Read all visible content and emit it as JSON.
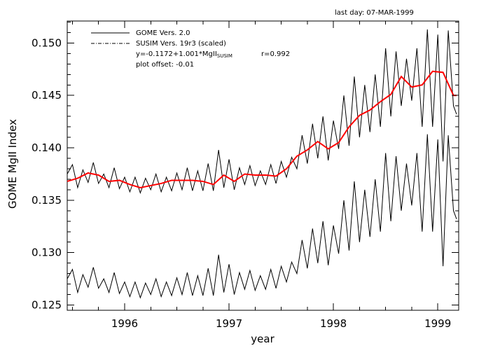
{
  "top_note": "last day: 07-MAR-1999",
  "legend": {
    "gome": "GOME Vers. 2.0",
    "susim": "SUSIM Vers. 19r3 (scaled)",
    "regression_prefix": "y=-0.1172+1.001*MgII",
    "regression_subscript": "SUSIM",
    "correlation": "r=0.992",
    "offset": "plot offset: -0.01"
  },
  "chart_data": {
    "type": "line",
    "title": "",
    "xlabel": "year",
    "ylabel": "GOME MgII Index",
    "xlim": [
      1995.45,
      1999.2
    ],
    "ylim": [
      0.1245,
      0.1521
    ],
    "x_ticks": [
      1996,
      1997,
      1998,
      1999
    ],
    "x_tick_labels": [
      "1996",
      "1997",
      "1998",
      "1999"
    ],
    "y_ticks": [
      0.125,
      0.13,
      0.135,
      0.14,
      0.145,
      0.15
    ],
    "y_tick_labels": [
      "0.125",
      "0.130",
      "0.135",
      "0.140",
      "0.145",
      "0.150"
    ],
    "plot_offset": -0.01,
    "series": [
      {
        "name": "GOME Vers. 2.0",
        "color": "#000000",
        "x": [
          1995.45,
          1995.5,
          1995.55,
          1995.6,
          1995.65,
          1995.7,
          1995.75,
          1995.8,
          1995.85,
          1995.9,
          1995.95,
          1996.0,
          1996.05,
          1996.1,
          1996.15,
          1996.2,
          1996.25,
          1996.3,
          1996.35,
          1996.4,
          1996.45,
          1996.5,
          1996.55,
          1996.6,
          1996.65,
          1996.7,
          1996.75,
          1996.8,
          1996.85,
          1996.9,
          1996.95,
          1997.0,
          1997.05,
          1997.1,
          1997.15,
          1997.2,
          1997.25,
          1997.3,
          1997.35,
          1997.4,
          1997.45,
          1997.5,
          1997.55,
          1997.6,
          1997.65,
          1997.7,
          1997.75,
          1997.8,
          1997.85,
          1997.9,
          1997.95,
          1998.0,
          1998.05,
          1998.1,
          1998.15,
          1998.2,
          1998.25,
          1998.3,
          1998.35,
          1998.4,
          1998.45,
          1998.5,
          1998.55,
          1998.6,
          1998.65,
          1998.7,
          1998.75,
          1998.8,
          1998.85,
          1998.9,
          1998.95,
          1999.0,
          1999.05,
          1999.1,
          1999.15,
          1999.18
        ],
        "values": [
          0.1375,
          0.1384,
          0.1362,
          0.1379,
          0.1367,
          0.1386,
          0.1366,
          0.1375,
          0.1362,
          0.1381,
          0.1361,
          0.1372,
          0.1358,
          0.1372,
          0.1357,
          0.1371,
          0.136,
          0.1375,
          0.1358,
          0.1372,
          0.1359,
          0.1376,
          0.136,
          0.1381,
          0.1359,
          0.1378,
          0.1359,
          0.1385,
          0.1359,
          0.1398,
          0.1362,
          0.1389,
          0.136,
          0.1381,
          0.1365,
          0.1383,
          0.1364,
          0.1378,
          0.1365,
          0.1384,
          0.1366,
          0.1387,
          0.1372,
          0.1391,
          0.138,
          0.1412,
          0.1385,
          0.1423,
          0.139,
          0.143,
          0.1388,
          0.1426,
          0.1399,
          0.145,
          0.1402,
          0.1468,
          0.141,
          0.146,
          0.1415,
          0.147,
          0.142,
          0.1495,
          0.143,
          0.1492,
          0.144,
          0.1485,
          0.1445,
          0.1495,
          0.142,
          0.1513,
          0.142,
          0.1508,
          0.1387,
          0.1512,
          0.144,
          0.1432
        ]
      },
      {
        "name": "SUSIM Vers. 19r3 (scaled)",
        "color": "#ff0000",
        "x": [
          1995.45,
          1995.55,
          1995.65,
          1995.75,
          1995.85,
          1995.95,
          1996.05,
          1996.15,
          1996.25,
          1996.35,
          1996.45,
          1996.55,
          1996.65,
          1996.75,
          1996.85,
          1996.95,
          1997.05,
          1997.15,
          1997.25,
          1997.35,
          1997.45,
          1997.55,
          1997.65,
          1997.75,
          1997.85,
          1997.95,
          1998.05,
          1998.15,
          1998.25,
          1998.35,
          1998.45,
          1998.55,
          1998.65,
          1998.75,
          1998.85,
          1998.95,
          1999.05,
          1999.15,
          1999.18
        ],
        "values": [
          0.1368,
          0.1371,
          0.1376,
          0.1374,
          0.1368,
          0.1369,
          0.1365,
          0.1362,
          0.1364,
          0.1366,
          0.1369,
          0.1369,
          0.1369,
          0.1368,
          0.1365,
          0.1374,
          0.1368,
          0.1375,
          0.1374,
          0.1374,
          0.1373,
          0.138,
          0.1392,
          0.1398,
          0.1406,
          0.1399,
          0.1405,
          0.142,
          0.1431,
          0.1436,
          0.1444,
          0.1451,
          0.1468,
          0.1458,
          0.146,
          0.1473,
          0.1472,
          0.145,
          0.145
        ]
      }
    ]
  }
}
